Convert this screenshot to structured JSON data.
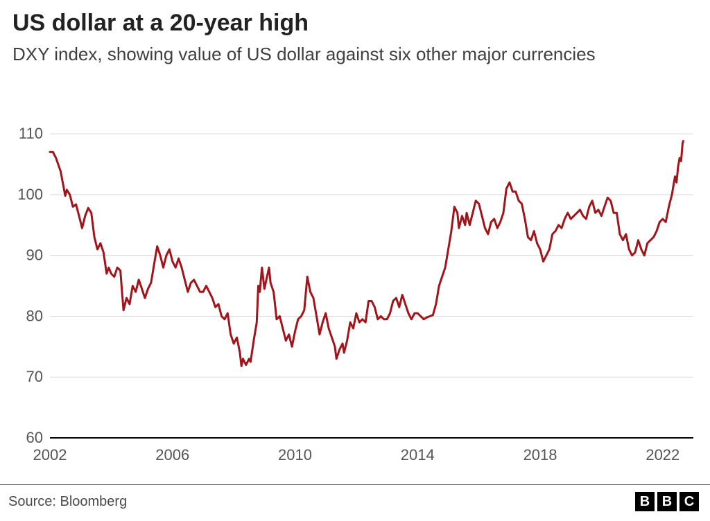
{
  "title": "US dollar at a 20-year high",
  "subtitle": "DXY index, showing value of US dollar against six other major currencies",
  "source": "Source: Bloomberg",
  "logo_letters": [
    "B",
    "B",
    "C"
  ],
  "chart": {
    "type": "line",
    "background_color": "#ffffff",
    "grid_color": "#d9d9d9",
    "axis_color": "#000000",
    "line_color": "#a3131a",
    "line_width": 3,
    "title_fontsize": 34,
    "subtitle_fontsize": 26,
    "label_fontsize": 22,
    "tick_label_color": "#555555",
    "y_axis": {
      "min": 60,
      "max": 114,
      "ticks": [
        60,
        70,
        80,
        90,
        100,
        110
      ]
    },
    "x_axis": {
      "min": 2002,
      "max": 2023,
      "ticks": [
        2002,
        2006,
        2010,
        2014,
        2018,
        2022
      ]
    },
    "series": [
      {
        "x": 2002.0,
        "y": 107.0
      },
      {
        "x": 2002.1,
        "y": 107.0
      },
      {
        "x": 2002.2,
        "y": 106.0
      },
      {
        "x": 2002.35,
        "y": 103.8
      },
      {
        "x": 2002.5,
        "y": 99.8
      },
      {
        "x": 2002.55,
        "y": 100.8
      },
      {
        "x": 2002.65,
        "y": 100.0
      },
      {
        "x": 2002.75,
        "y": 98.0
      },
      {
        "x": 2002.85,
        "y": 98.4
      },
      {
        "x": 2002.95,
        "y": 96.5
      },
      {
        "x": 2003.05,
        "y": 94.5
      },
      {
        "x": 2003.15,
        "y": 96.5
      },
      {
        "x": 2003.25,
        "y": 97.8
      },
      {
        "x": 2003.35,
        "y": 97.0
      },
      {
        "x": 2003.45,
        "y": 93.0
      },
      {
        "x": 2003.55,
        "y": 91.0
      },
      {
        "x": 2003.65,
        "y": 92.0
      },
      {
        "x": 2003.75,
        "y": 90.5
      },
      {
        "x": 2003.85,
        "y": 87.0
      },
      {
        "x": 2003.92,
        "y": 88.0
      },
      {
        "x": 2004.0,
        "y": 87.0
      },
      {
        "x": 2004.1,
        "y": 86.5
      },
      {
        "x": 2004.2,
        "y": 88.0
      },
      {
        "x": 2004.3,
        "y": 87.5
      },
      {
        "x": 2004.4,
        "y": 81.0
      },
      {
        "x": 2004.5,
        "y": 83.0
      },
      {
        "x": 2004.6,
        "y": 82.0
      },
      {
        "x": 2004.7,
        "y": 85.0
      },
      {
        "x": 2004.8,
        "y": 84.0
      },
      {
        "x": 2004.9,
        "y": 86.0
      },
      {
        "x": 2005.0,
        "y": 84.5
      },
      {
        "x": 2005.1,
        "y": 83.0
      },
      {
        "x": 2005.2,
        "y": 84.5
      },
      {
        "x": 2005.3,
        "y": 85.5
      },
      {
        "x": 2005.4,
        "y": 88.5
      },
      {
        "x": 2005.5,
        "y": 91.5
      },
      {
        "x": 2005.6,
        "y": 90.0
      },
      {
        "x": 2005.7,
        "y": 88.0
      },
      {
        "x": 2005.8,
        "y": 90.0
      },
      {
        "x": 2005.9,
        "y": 91.0
      },
      {
        "x": 2006.0,
        "y": 89.0
      },
      {
        "x": 2006.1,
        "y": 88.0
      },
      {
        "x": 2006.2,
        "y": 89.5
      },
      {
        "x": 2006.3,
        "y": 88.0
      },
      {
        "x": 2006.4,
        "y": 86.0
      },
      {
        "x": 2006.5,
        "y": 84.0
      },
      {
        "x": 2006.6,
        "y": 85.5
      },
      {
        "x": 2006.7,
        "y": 86.0
      },
      {
        "x": 2006.8,
        "y": 85.0
      },
      {
        "x": 2006.9,
        "y": 84.0
      },
      {
        "x": 2007.0,
        "y": 84.0
      },
      {
        "x": 2007.1,
        "y": 85.0
      },
      {
        "x": 2007.2,
        "y": 84.0
      },
      {
        "x": 2007.3,
        "y": 83.0
      },
      {
        "x": 2007.4,
        "y": 81.5
      },
      {
        "x": 2007.5,
        "y": 82.0
      },
      {
        "x": 2007.6,
        "y": 80.0
      },
      {
        "x": 2007.7,
        "y": 79.5
      },
      {
        "x": 2007.8,
        "y": 80.5
      },
      {
        "x": 2007.9,
        "y": 77.0
      },
      {
        "x": 2008.0,
        "y": 75.5
      },
      {
        "x": 2008.1,
        "y": 76.5
      },
      {
        "x": 2008.2,
        "y": 74.0
      },
      {
        "x": 2008.25,
        "y": 71.8
      },
      {
        "x": 2008.3,
        "y": 73.0
      },
      {
        "x": 2008.4,
        "y": 72.0
      },
      {
        "x": 2008.5,
        "y": 73.0
      },
      {
        "x": 2008.55,
        "y": 72.5
      },
      {
        "x": 2008.65,
        "y": 76.0
      },
      {
        "x": 2008.75,
        "y": 79.0
      },
      {
        "x": 2008.8,
        "y": 85.0
      },
      {
        "x": 2008.85,
        "y": 84.0
      },
      {
        "x": 2008.92,
        "y": 88.0
      },
      {
        "x": 2009.0,
        "y": 84.5
      },
      {
        "x": 2009.15,
        "y": 88.0
      },
      {
        "x": 2009.2,
        "y": 85.5
      },
      {
        "x": 2009.3,
        "y": 84.0
      },
      {
        "x": 2009.4,
        "y": 79.5
      },
      {
        "x": 2009.5,
        "y": 80.0
      },
      {
        "x": 2009.6,
        "y": 78.0
      },
      {
        "x": 2009.7,
        "y": 76.0
      },
      {
        "x": 2009.8,
        "y": 77.0
      },
      {
        "x": 2009.9,
        "y": 75.0
      },
      {
        "x": 2010.0,
        "y": 77.5
      },
      {
        "x": 2010.1,
        "y": 79.5
      },
      {
        "x": 2010.2,
        "y": 80.0
      },
      {
        "x": 2010.3,
        "y": 81.0
      },
      {
        "x": 2010.4,
        "y": 86.5
      },
      {
        "x": 2010.5,
        "y": 84.0
      },
      {
        "x": 2010.6,
        "y": 83.0
      },
      {
        "x": 2010.7,
        "y": 80.0
      },
      {
        "x": 2010.8,
        "y": 77.0
      },
      {
        "x": 2010.9,
        "y": 79.0
      },
      {
        "x": 2011.0,
        "y": 80.5
      },
      {
        "x": 2011.1,
        "y": 78.0
      },
      {
        "x": 2011.2,
        "y": 76.5
      },
      {
        "x": 2011.3,
        "y": 75.0
      },
      {
        "x": 2011.35,
        "y": 73.0
      },
      {
        "x": 2011.45,
        "y": 74.5
      },
      {
        "x": 2011.55,
        "y": 75.5
      },
      {
        "x": 2011.6,
        "y": 74.0
      },
      {
        "x": 2011.7,
        "y": 76.0
      },
      {
        "x": 2011.8,
        "y": 79.0
      },
      {
        "x": 2011.9,
        "y": 78.0
      },
      {
        "x": 2012.0,
        "y": 80.5
      },
      {
        "x": 2012.1,
        "y": 79.0
      },
      {
        "x": 2012.2,
        "y": 79.5
      },
      {
        "x": 2012.3,
        "y": 79.0
      },
      {
        "x": 2012.4,
        "y": 82.5
      },
      {
        "x": 2012.5,
        "y": 82.5
      },
      {
        "x": 2012.6,
        "y": 81.5
      },
      {
        "x": 2012.7,
        "y": 79.5
      },
      {
        "x": 2012.8,
        "y": 80.0
      },
      {
        "x": 2012.9,
        "y": 79.5
      },
      {
        "x": 2013.0,
        "y": 79.5
      },
      {
        "x": 2013.1,
        "y": 80.5
      },
      {
        "x": 2013.2,
        "y": 82.5
      },
      {
        "x": 2013.3,
        "y": 83.0
      },
      {
        "x": 2013.4,
        "y": 81.5
      },
      {
        "x": 2013.5,
        "y": 83.5
      },
      {
        "x": 2013.6,
        "y": 82.0
      },
      {
        "x": 2013.7,
        "y": 80.5
      },
      {
        "x": 2013.8,
        "y": 79.5
      },
      {
        "x": 2013.9,
        "y": 80.5
      },
      {
        "x": 2014.0,
        "y": 80.5
      },
      {
        "x": 2014.1,
        "y": 80.0
      },
      {
        "x": 2014.2,
        "y": 79.5
      },
      {
        "x": 2014.3,
        "y": 79.8
      },
      {
        "x": 2014.4,
        "y": 80.0
      },
      {
        "x": 2014.5,
        "y": 80.2
      },
      {
        "x": 2014.6,
        "y": 82.0
      },
      {
        "x": 2014.7,
        "y": 85.0
      },
      {
        "x": 2014.8,
        "y": 86.5
      },
      {
        "x": 2014.9,
        "y": 88.0
      },
      {
        "x": 2015.0,
        "y": 91.0
      },
      {
        "x": 2015.1,
        "y": 94.0
      },
      {
        "x": 2015.2,
        "y": 98.0
      },
      {
        "x": 2015.3,
        "y": 97.0
      },
      {
        "x": 2015.35,
        "y": 94.5
      },
      {
        "x": 2015.45,
        "y": 96.5
      },
      {
        "x": 2015.55,
        "y": 95.0
      },
      {
        "x": 2015.6,
        "y": 97.0
      },
      {
        "x": 2015.7,
        "y": 95.0
      },
      {
        "x": 2015.8,
        "y": 97.0
      },
      {
        "x": 2015.9,
        "y": 99.0
      },
      {
        "x": 2016.0,
        "y": 98.5
      },
      {
        "x": 2016.1,
        "y": 96.5
      },
      {
        "x": 2016.2,
        "y": 94.5
      },
      {
        "x": 2016.3,
        "y": 93.5
      },
      {
        "x": 2016.4,
        "y": 95.5
      },
      {
        "x": 2016.5,
        "y": 96.0
      },
      {
        "x": 2016.6,
        "y": 94.5
      },
      {
        "x": 2016.7,
        "y": 95.5
      },
      {
        "x": 2016.8,
        "y": 97.0
      },
      {
        "x": 2016.9,
        "y": 101.0
      },
      {
        "x": 2017.0,
        "y": 102.0
      },
      {
        "x": 2017.1,
        "y": 100.5
      },
      {
        "x": 2017.2,
        "y": 100.5
      },
      {
        "x": 2017.3,
        "y": 99.0
      },
      {
        "x": 2017.4,
        "y": 98.5
      },
      {
        "x": 2017.5,
        "y": 96.0
      },
      {
        "x": 2017.6,
        "y": 93.0
      },
      {
        "x": 2017.7,
        "y": 92.5
      },
      {
        "x": 2017.8,
        "y": 94.0
      },
      {
        "x": 2017.9,
        "y": 92.0
      },
      {
        "x": 2018.0,
        "y": 91.0
      },
      {
        "x": 2018.1,
        "y": 89.0
      },
      {
        "x": 2018.2,
        "y": 90.0
      },
      {
        "x": 2018.3,
        "y": 91.0
      },
      {
        "x": 2018.4,
        "y": 93.5
      },
      {
        "x": 2018.5,
        "y": 94.0
      },
      {
        "x": 2018.6,
        "y": 95.0
      },
      {
        "x": 2018.7,
        "y": 94.5
      },
      {
        "x": 2018.8,
        "y": 96.0
      },
      {
        "x": 2018.9,
        "y": 97.0
      },
      {
        "x": 2019.0,
        "y": 96.0
      },
      {
        "x": 2019.1,
        "y": 96.5
      },
      {
        "x": 2019.2,
        "y": 97.0
      },
      {
        "x": 2019.3,
        "y": 97.5
      },
      {
        "x": 2019.4,
        "y": 96.5
      },
      {
        "x": 2019.5,
        "y": 96.0
      },
      {
        "x": 2019.6,
        "y": 98.0
      },
      {
        "x": 2019.7,
        "y": 99.0
      },
      {
        "x": 2019.8,
        "y": 97.0
      },
      {
        "x": 2019.9,
        "y": 97.5
      },
      {
        "x": 2020.0,
        "y": 96.5
      },
      {
        "x": 2020.1,
        "y": 98.0
      },
      {
        "x": 2020.2,
        "y": 99.5
      },
      {
        "x": 2020.3,
        "y": 99.0
      },
      {
        "x": 2020.4,
        "y": 97.0
      },
      {
        "x": 2020.5,
        "y": 97.0
      },
      {
        "x": 2020.6,
        "y": 93.5
      },
      {
        "x": 2020.7,
        "y": 92.5
      },
      {
        "x": 2020.8,
        "y": 93.5
      },
      {
        "x": 2020.9,
        "y": 91.0
      },
      {
        "x": 2021.0,
        "y": 90.0
      },
      {
        "x": 2021.1,
        "y": 90.5
      },
      {
        "x": 2021.2,
        "y": 92.5
      },
      {
        "x": 2021.3,
        "y": 91.0
      },
      {
        "x": 2021.4,
        "y": 90.0
      },
      {
        "x": 2021.5,
        "y": 92.0
      },
      {
        "x": 2021.6,
        "y": 92.5
      },
      {
        "x": 2021.7,
        "y": 93.0
      },
      {
        "x": 2021.8,
        "y": 94.0
      },
      {
        "x": 2021.9,
        "y": 95.5
      },
      {
        "x": 2022.0,
        "y": 96.0
      },
      {
        "x": 2022.1,
        "y": 95.5
      },
      {
        "x": 2022.2,
        "y": 98.0
      },
      {
        "x": 2022.3,
        "y": 100.0
      },
      {
        "x": 2022.4,
        "y": 103.0
      },
      {
        "x": 2022.45,
        "y": 102.0
      },
      {
        "x": 2022.5,
        "y": 104.5
      },
      {
        "x": 2022.55,
        "y": 106.0
      },
      {
        "x": 2022.6,
        "y": 105.5
      },
      {
        "x": 2022.65,
        "y": 108.5
      },
      {
        "x": 2022.67,
        "y": 108.8
      }
    ]
  }
}
